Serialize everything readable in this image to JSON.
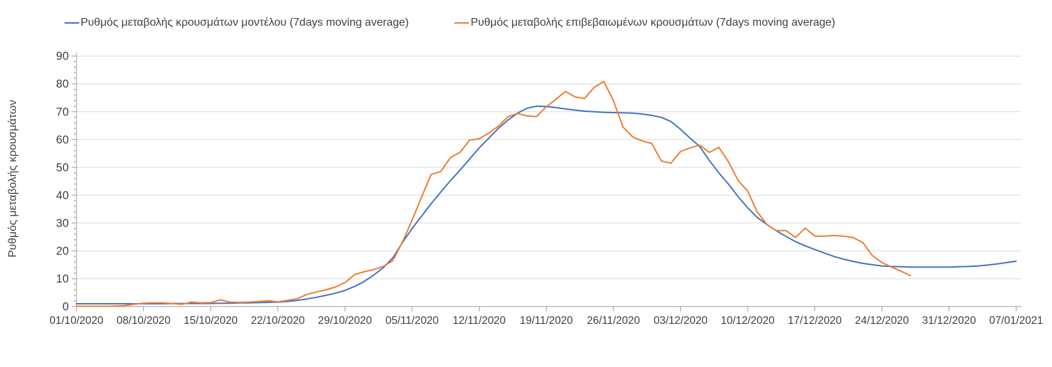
{
  "legend": {
    "items": [
      {
        "label": "Ρυθμός μεταβολής κρουσμάτων μοντέλου (7days moving average)",
        "color": "#4472C4"
      },
      {
        "label": "Ρυθμός μεταβολής επιβεβαιωμένων κρουσμάτων (7days moving average)",
        "color": "#ED7D31"
      }
    ]
  },
  "chart_data": {
    "type": "line",
    "title": "",
    "xlabel": "",
    "ylabel": "Ρυθμός μεταβολής κρουσμάτων",
    "ylim": [
      0,
      90
    ],
    "y_tick_interval": 10,
    "y_minor_tick_interval": 2,
    "grid": "horizontal",
    "legend_position": "top",
    "x_unit": "days since 01/10/2020 (daily points)",
    "x_tick_labels": [
      "01/10/2020",
      "08/10/2020",
      "15/10/2020",
      "22/10/2020",
      "29/10/2020",
      "05/11/2020",
      "12/11/2020",
      "19/11/2020",
      "26/11/2020",
      "03/12/2020",
      "10/12/2020",
      "17/12/2020",
      "24/12/2020",
      "31/12/2020",
      "07/01/2021"
    ],
    "x_tick_days": [
      0,
      7,
      14,
      21,
      28,
      35,
      42,
      49,
      56,
      63,
      70,
      77,
      84,
      91,
      98
    ],
    "series": [
      {
        "name": "Ρυθμός μεταβολής κρουσμάτων μοντέλου (7days moving average)",
        "color": "#4472C4",
        "start_day": 0,
        "values": [
          1,
          1,
          1,
          1,
          1,
          1,
          1,
          1,
          1,
          1,
          1.1,
          1.1,
          1.1,
          1.1,
          1.1,
          1.2,
          1.2,
          1.3,
          1.3,
          1.4,
          1.5,
          1.6,
          1.8,
          2.2,
          2.7,
          3.3,
          4,
          4.8,
          5.8,
          7.2,
          9,
          11.3,
          14,
          17.5,
          23,
          28,
          32.5,
          37,
          41.2,
          45.2,
          49,
          53,
          57,
          60.5,
          64,
          67,
          69.5,
          71.3,
          72,
          71.9,
          71.5,
          71,
          70.6,
          70.2,
          70,
          69.8,
          69.7,
          69.6,
          69.5,
          69.2,
          68.7,
          68,
          66.5,
          63.7,
          60.5,
          57.5,
          52.5,
          48,
          44,
          39.5,
          35.5,
          32,
          29.5,
          27.2,
          25.2,
          23.3,
          21.8,
          20.5,
          19.2,
          18,
          17,
          16.2,
          15.5,
          15,
          14.6,
          14.4,
          14.3,
          14.2,
          14.2,
          14.2,
          14.2,
          14.2,
          14.3,
          14.4,
          14.6,
          14.9,
          15.3,
          15.8,
          16.3
        ]
      },
      {
        "name": "Ρυθμός μεταβολής επιβεβαιωμένων κρουσμάτων (7days moving average)",
        "color": "#ED7D31",
        "start_day": 0,
        "values": [
          0.1,
          0.1,
          0.1,
          0.1,
          0.2,
          0.3,
          0.8,
          1.2,
          1.3,
          1.3,
          1.1,
          0.8,
          1.6,
          1.3,
          1.4,
          2.4,
          1.6,
          1.5,
          1.6,
          1.8,
          2.1,
          1.7,
          2.2,
          2.8,
          4.3,
          5.2,
          6,
          7,
          8.6,
          11.5,
          12.5,
          13.3,
          14.4,
          16.5,
          23.2,
          31,
          39.4,
          47.5,
          48.5,
          53.5,
          55.4,
          59.8,
          60.3,
          62.3,
          64.8,
          68.2,
          69.4,
          68.5,
          68.3,
          71.8,
          74.5,
          77.3,
          75.3,
          74.8,
          78.8,
          80.9,
          74,
          64.5,
          61,
          59.5,
          58.6,
          52.3,
          51.5,
          55.7,
          57,
          58,
          55.4,
          57.2,
          52,
          45.3,
          41.5,
          34,
          29.5,
          27.3,
          27.3,
          24.8,
          28.2,
          25.3,
          25.3,
          25.5,
          25.3,
          24.8,
          23,
          18.3,
          15.8,
          14.2,
          12.7,
          11.1
        ]
      }
    ],
    "style": {
      "gridline_color": "#d9d9d9",
      "axis_color": "#9b9b9b",
      "label_color": "#404040"
    }
  }
}
